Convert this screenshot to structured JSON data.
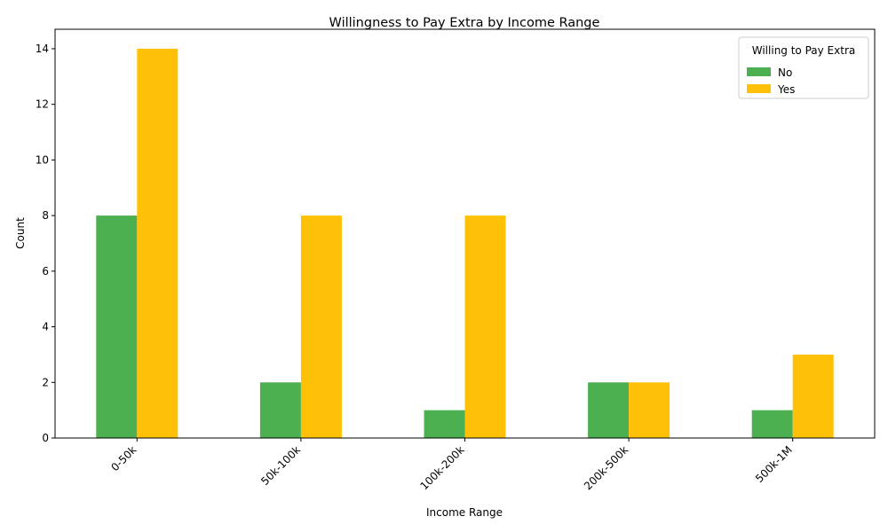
{
  "chart_data": {
    "type": "bar",
    "title": "Willingness to Pay Extra by Income Range",
    "xlabel": "Income Range",
    "ylabel": "Count",
    "categories": [
      "0-50k",
      "50k-100k",
      "100k-200k",
      "200k-500k",
      "500k-1M"
    ],
    "series": [
      {
        "name": "No",
        "values": [
          8,
          2,
          1,
          2,
          1
        ],
        "color": "#4caf50"
      },
      {
        "name": "Yes",
        "values": [
          14,
          8,
          8,
          2,
          3
        ],
        "color": "#ffc107"
      }
    ],
    "ylim": [
      0,
      14.7
    ],
    "yticks": [
      0,
      2,
      4,
      6,
      8,
      10,
      12,
      14
    ],
    "grid": false,
    "legend": {
      "title": "Willing to Pay Extra",
      "placement": "top-right"
    },
    "xtick_rotation_deg": 45
  }
}
